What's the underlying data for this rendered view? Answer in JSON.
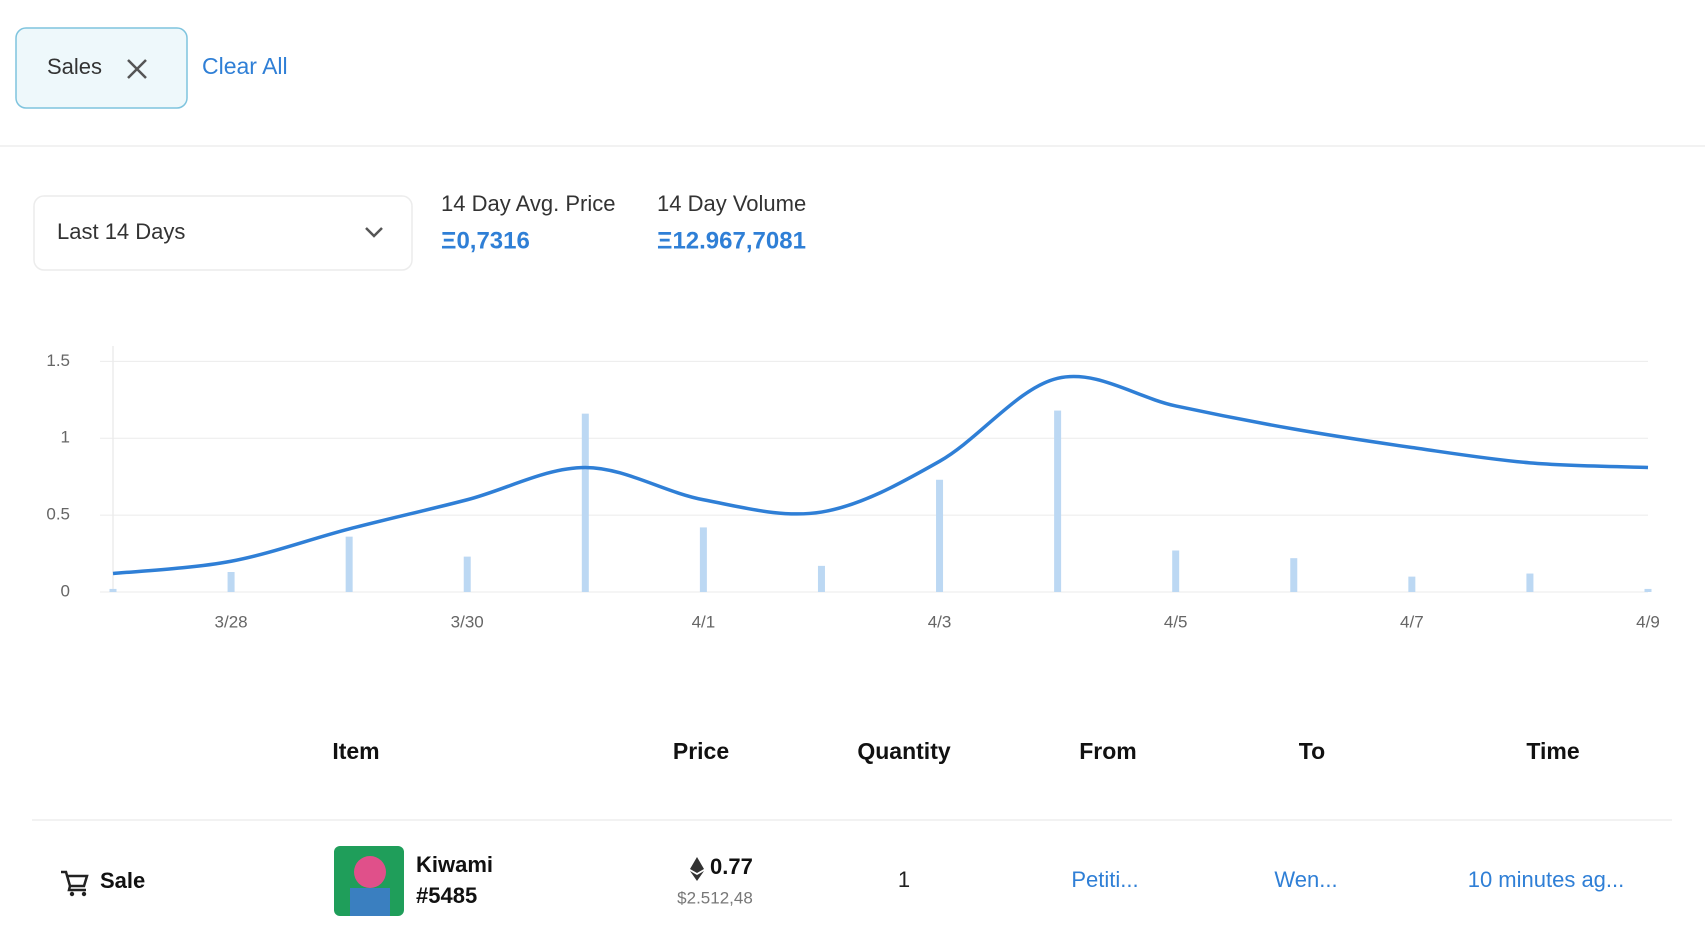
{
  "filters": {
    "chips": [
      "Sales"
    ],
    "clear": "Clear All"
  },
  "controls": {
    "range": "Last 14 Days"
  },
  "stats": [
    {
      "label": "14 Day Avg. Price",
      "value": "Ξ0,7316"
    },
    {
      "label": "14 Day Volume",
      "value": "Ξ12.967,7081"
    }
  ],
  "chart_data": {
    "type": "bar",
    "categories": [
      null,
      "3/28",
      null,
      "3/30",
      null,
      "4/1",
      null,
      "4/3",
      null,
      "4/5",
      null,
      "4/7",
      null,
      "4/9"
    ],
    "series": [
      {
        "type": "bar",
        "color": "#bcd8f3",
        "values": [
          0.02,
          0.13,
          0.36,
          0.23,
          1.16,
          0.42,
          0.17,
          0.73,
          1.18,
          0.27,
          0.22,
          0.1,
          0.12,
          0.02
        ]
      },
      {
        "type": "line",
        "color": "#2f7fd6",
        "values": [
          0.12,
          0.2,
          0.41,
          0.6,
          0.81,
          0.6,
          0.52,
          0.85,
          1.39,
          1.21,
          1.06,
          0.94,
          0.84,
          0.81
        ]
      }
    ],
    "ylim": [
      0,
      1.6
    ],
    "yticks": [
      0,
      0.5,
      1,
      1.5
    ],
    "grid": true
  },
  "table": {
    "columns": [
      "Item",
      "Price",
      "Quantity",
      "From",
      "To",
      "Time"
    ],
    "rows": [
      {
        "event": "Sale",
        "item_name": "Kiwami",
        "item_id": "#5485",
        "price": "0.77",
        "price_usd": "$2.512,48",
        "quantity": "1",
        "from": "Petiti...",
        "to": "Wen...",
        "time": "10 minutes ag..."
      }
    ]
  }
}
